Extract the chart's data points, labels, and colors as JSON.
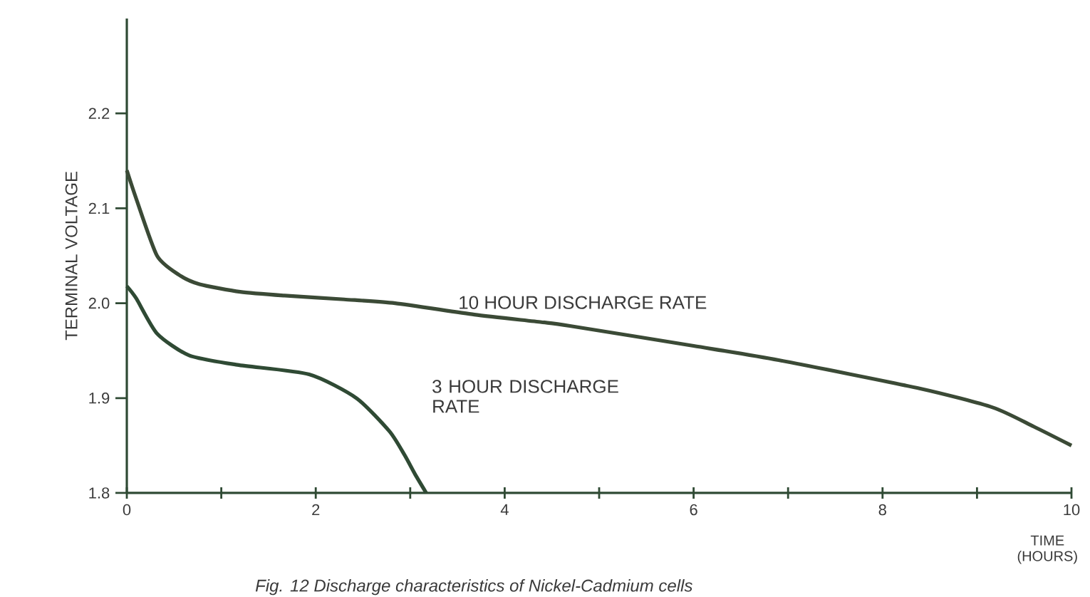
{
  "chart_data": {
    "type": "line",
    "xlabel": "TIME (HOURS)",
    "ylabel": "TERMINAL VOLTAGE",
    "annotations": [
      "Fig. 12 Discharge characteristics of Nickel-Cadmium cells"
    ],
    "xlim": [
      0,
      10
    ],
    "ylim": [
      1.8,
      2.3
    ],
    "xticks": [
      0,
      {
        "value": 1,
        "label": null
      },
      2,
      {
        "value": 3,
        "label": null
      },
      4,
      {
        "value": 5,
        "label": null
      },
      6,
      {
        "value": 7,
        "label": null
      },
      8,
      {
        "value": 9,
        "label": null
      },
      10
    ],
    "yticks": [
      1.8,
      1.9,
      {
        "value": 2.0,
        "label": "2.0"
      },
      2.1,
      2.2
    ],
    "grid": false,
    "legend": false,
    "marker": "none",
    "line_style": "solid",
    "series": [
      {
        "name": "10 HOUR DISCHARGE RATE",
        "color": "#3b4a36",
        "x": [
          0,
          0.1,
          0.32,
          0.55,
          0.77,
          1.2,
          1.67,
          2.3,
          2.84,
          3.68,
          4.39,
          4.69,
          6.0,
          6.9,
          8.4,
          9.17,
          9.6,
          10.0
        ],
        "values": [
          2.14,
          2.11,
          2.05,
          2.03,
          2.02,
          2.012,
          2.008,
          2.004,
          2.0,
          1.988,
          1.98,
          1.976,
          1.955,
          1.94,
          1.91,
          1.89,
          1.87,
          1.85
        ]
      },
      {
        "name": "3 HOUR DISCHARGE RATE",
        "color": "#2f4a34",
        "x": [
          0,
          0.1,
          0.32,
          0.66,
          1.17,
          1.93,
          2.43,
          2.78,
          2.94,
          3.05,
          3.17
        ],
        "values": [
          2.018,
          2.005,
          1.968,
          1.945,
          1.935,
          1.925,
          1.9,
          1.865,
          1.84,
          1.82,
          1.8
        ]
      }
    ]
  }
}
